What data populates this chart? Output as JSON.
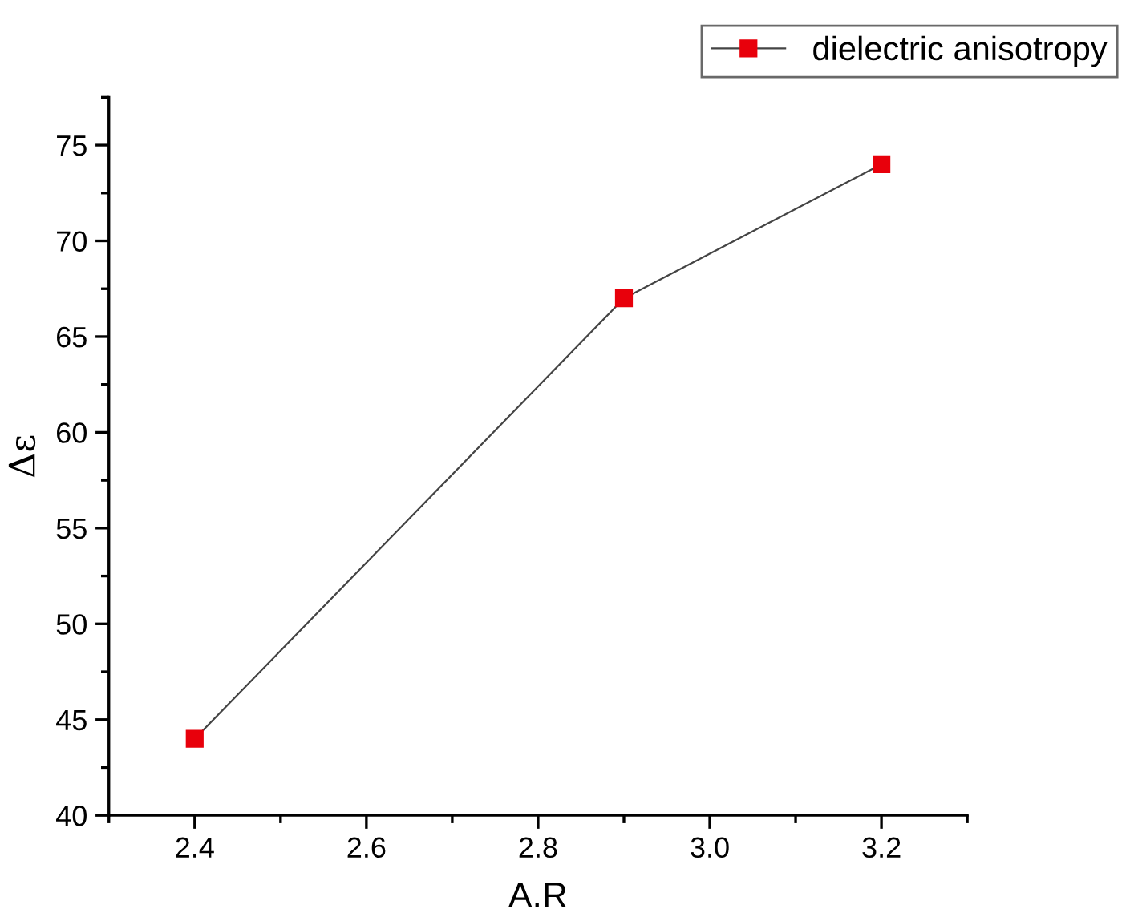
{
  "chart_data": {
    "type": "line",
    "xlabel": "A.R",
    "ylabel": "Δε",
    "x": [
      2.4,
      2.9,
      3.2
    ],
    "series": [
      {
        "name": "dielectric anisotropy",
        "color": "#e8000b",
        "values": [
          44,
          67,
          74
        ]
      }
    ],
    "xlim": [
      2.3,
      3.3
    ],
    "xticks": [
      {
        "value": 2.4,
        "label": "2.4"
      },
      {
        "value": 2.6,
        "label": "2.6"
      },
      {
        "value": 2.8,
        "label": "2.8"
      },
      {
        "value": 3.0,
        "label": "3.0"
      },
      {
        "value": 3.2,
        "label": "3.2"
      }
    ],
    "ylim": [
      40,
      77.5
    ],
    "yticks": [
      40,
      45,
      50,
      55,
      60,
      65,
      70,
      75
    ],
    "marker": "square",
    "line_style": "solid",
    "grid": false,
    "legend": "top right"
  }
}
